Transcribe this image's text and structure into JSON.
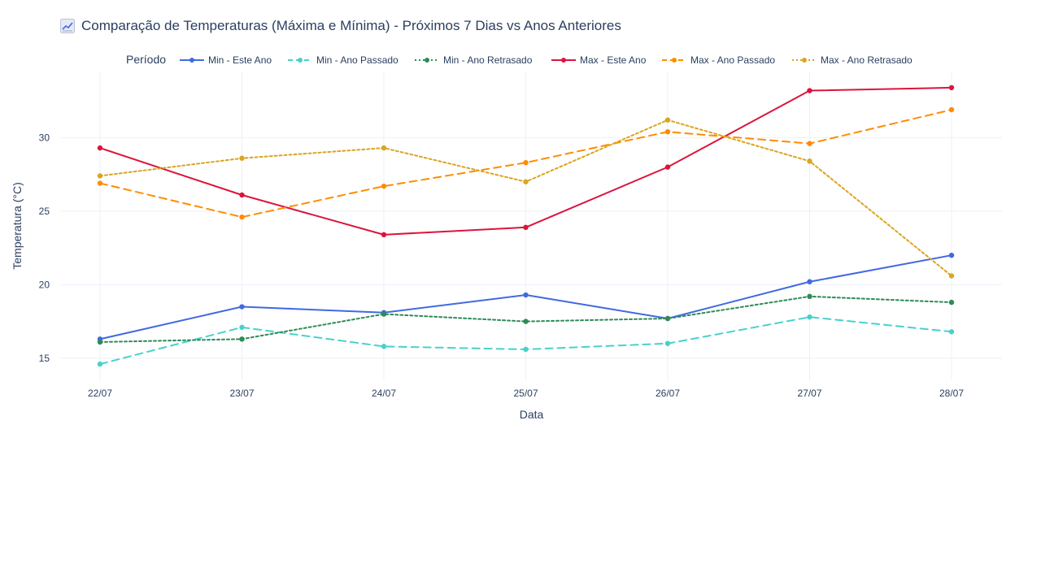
{
  "title": "Comparação de Temperaturas (Máxima e Mínima) - Próximos 7 Dias vs Anos Anteriores",
  "title_icon": "chart-increasing-icon",
  "chart_data": {
    "type": "line",
    "title": "Comparação de Temperaturas (Máxima e Mínima) - Próximos 7 Dias vs Anos Anteriores",
    "xlabel": "Data",
    "ylabel": "Temperatura (°C)",
    "categories": [
      "22/07",
      "23/07",
      "24/07",
      "25/07",
      "26/07",
      "27/07",
      "28/07"
    ],
    "ylim": [
      13.5,
      34.5
    ],
    "yticks": [
      15,
      20,
      25,
      30
    ],
    "grid": true,
    "legend": {
      "title": "Período",
      "placement": "top"
    },
    "series": [
      {
        "name": "Min - Este Ano",
        "values": [
          16.3,
          18.5,
          18.1,
          19.3,
          17.7,
          20.2,
          22.0
        ],
        "color": "#4169e1",
        "dash": "solid"
      },
      {
        "name": "Min - Ano Passado",
        "values": [
          14.6,
          17.1,
          15.8,
          15.6,
          16.0,
          17.8,
          16.8
        ],
        "color": "#48d1cc",
        "dash": "dash"
      },
      {
        "name": "Min - Ano Retrasado",
        "values": [
          16.1,
          16.3,
          18.0,
          17.5,
          17.7,
          19.2,
          18.8
        ],
        "color": "#2e8b57",
        "dash": "dot"
      },
      {
        "name": "Max - Este Ano",
        "values": [
          29.3,
          26.1,
          23.4,
          23.9,
          28.0,
          33.2,
          33.4
        ],
        "color": "#dc143c",
        "dash": "solid"
      },
      {
        "name": "Max - Ano Passado",
        "values": [
          26.9,
          24.6,
          26.7,
          28.3,
          30.4,
          29.6,
          31.9
        ],
        "color": "#ff8c00",
        "dash": "dash"
      },
      {
        "name": "Max - Ano Retrasado",
        "values": [
          27.4,
          28.6,
          29.3,
          27.0,
          31.2,
          28.4,
          20.6
        ],
        "color": "#daa520",
        "dash": "dot"
      }
    ]
  }
}
